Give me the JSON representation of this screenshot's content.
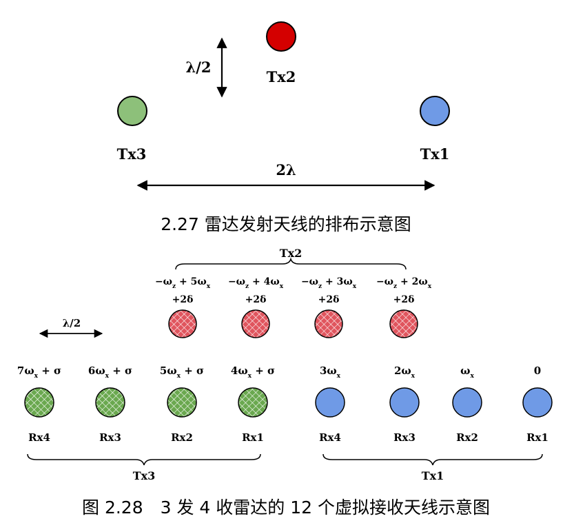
{
  "figure_2_27": {
    "lambda_half_label": "λ/2",
    "two_lambda_label": "2λ",
    "antennas": [
      {
        "label": "Tx2",
        "color": "#d40000"
      },
      {
        "label": "Tx3",
        "color": "#8dc07a"
      },
      {
        "label": "Tx1",
        "color": "#6f9ae6"
      }
    ],
    "caption": "2.27 雷达发射天线的排布示意图"
  },
  "figure_2_28": {
    "lambda_half_label": "λ/2",
    "tx2": {
      "label": "Tx2",
      "color": "#e0555e",
      "elements": [
        {
          "line1": "−ω_z + 5ω_x",
          "line2": "+2δ"
        },
        {
          "line1": "−ω_z + 4ω_x",
          "line2": "+2δ"
        },
        {
          "line1": "−ω_z + 3ω_x",
          "line2": "+2δ"
        },
        {
          "line1": "−ω_z + 2ω_x",
          "line2": "+2δ"
        }
      ]
    },
    "tx3": {
      "label": "Tx3",
      "color": "#6aa84f",
      "elements": [
        {
          "phase": "7ω_x + σ",
          "rx": "Rx4"
        },
        {
          "phase": "6ω_x + σ",
          "rx": "Rx3"
        },
        {
          "phase": "5ω_x + σ",
          "rx": "Rx2"
        },
        {
          "phase": "4ω_x + σ",
          "rx": "Rx1"
        }
      ]
    },
    "tx1": {
      "label": "Tx1",
      "color": "#6f9ae6",
      "elements": [
        {
          "phase": "3ω_x",
          "rx": "Rx4"
        },
        {
          "phase": "2ω_x",
          "rx": "Rx3"
        },
        {
          "phase": "ω_x",
          "rx": "Rx2"
        },
        {
          "phase": "0",
          "rx": "Rx1"
        }
      ]
    },
    "caption": "图 2.28　3 发 4 收雷达的 12 个虚拟接收天线示意图"
  }
}
